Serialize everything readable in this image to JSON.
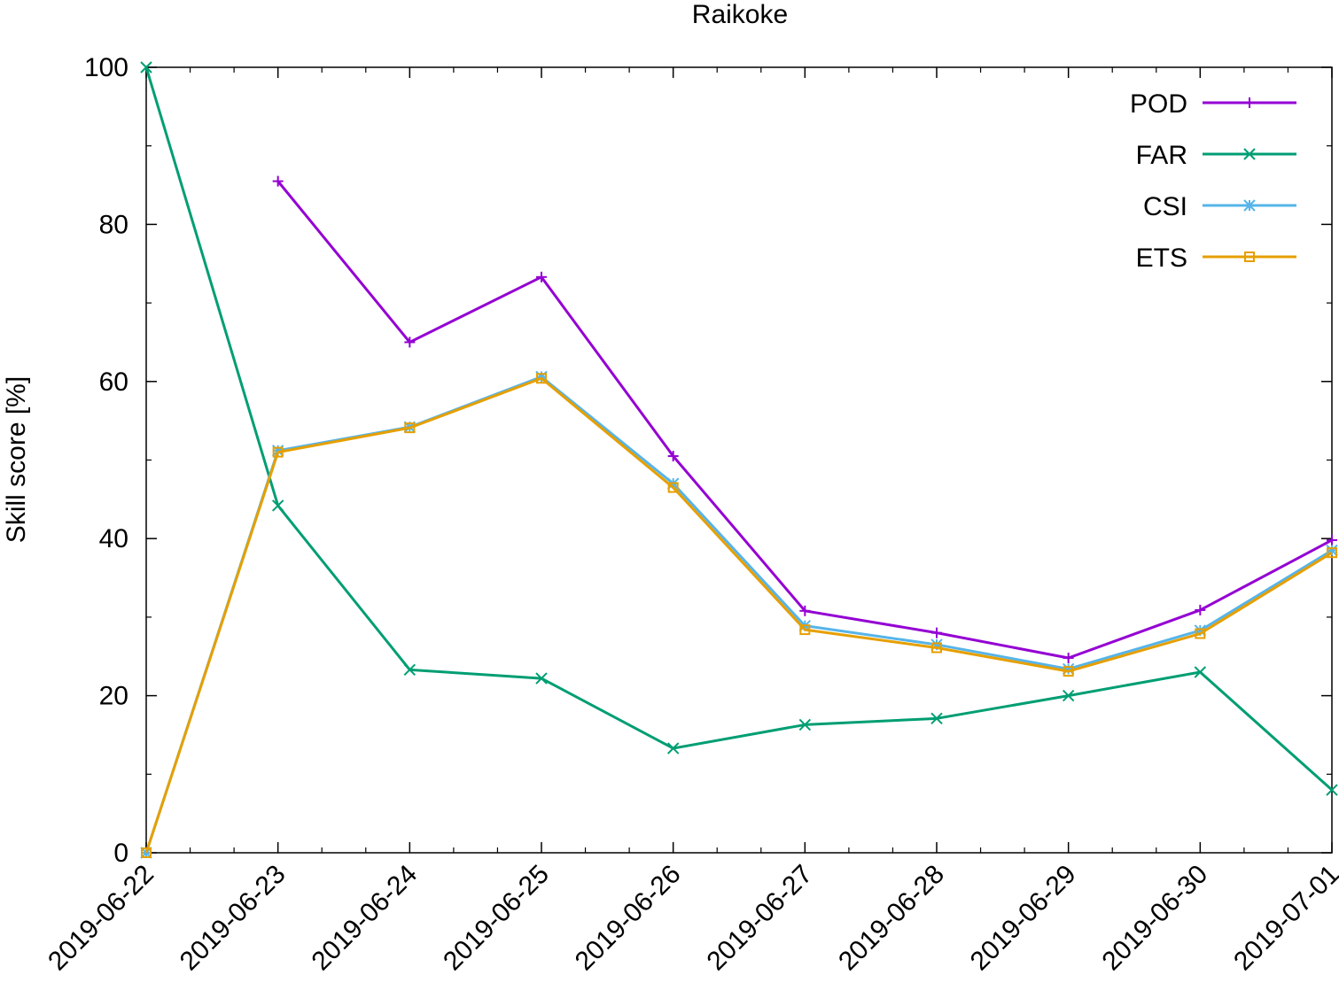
{
  "chart_data": {
    "type": "line",
    "title": "Raikoke",
    "xlabel": "",
    "ylabel": "Skill score [%]",
    "categories": [
      "2019-06-22",
      "2019-06-23",
      "2019-06-24",
      "2019-06-25",
      "2019-06-26",
      "2019-06-27",
      "2019-06-28",
      "2019-06-29",
      "2019-06-30",
      "2019-07-01"
    ],
    "ylim": [
      0,
      100
    ],
    "yticks": [
      0,
      20,
      40,
      60,
      80,
      100
    ],
    "grid": false,
    "legend_position": "top-right",
    "series": [
      {
        "name": "POD",
        "color": "#9400d3",
        "marker": "plus",
        "values": [
          null,
          85.5,
          65.0,
          73.3,
          50.5,
          30.8,
          28.0,
          24.8,
          30.9,
          39.8
        ]
      },
      {
        "name": "FAR",
        "color": "#009e73",
        "marker": "cross",
        "values": [
          100.0,
          44.2,
          23.3,
          22.2,
          13.3,
          16.3,
          17.1,
          20.0,
          23.0,
          8.0
        ]
      },
      {
        "name": "CSI",
        "color": "#56b4e9",
        "marker": "star",
        "values": [
          0.0,
          51.2,
          54.2,
          60.6,
          47.0,
          28.9,
          26.5,
          23.4,
          28.3,
          38.5
        ]
      },
      {
        "name": "ETS",
        "color": "#e69f00",
        "marker": "square",
        "values": [
          0.0,
          51.0,
          54.1,
          60.4,
          46.5,
          28.4,
          26.1,
          23.1,
          27.9,
          38.2
        ]
      }
    ]
  }
}
